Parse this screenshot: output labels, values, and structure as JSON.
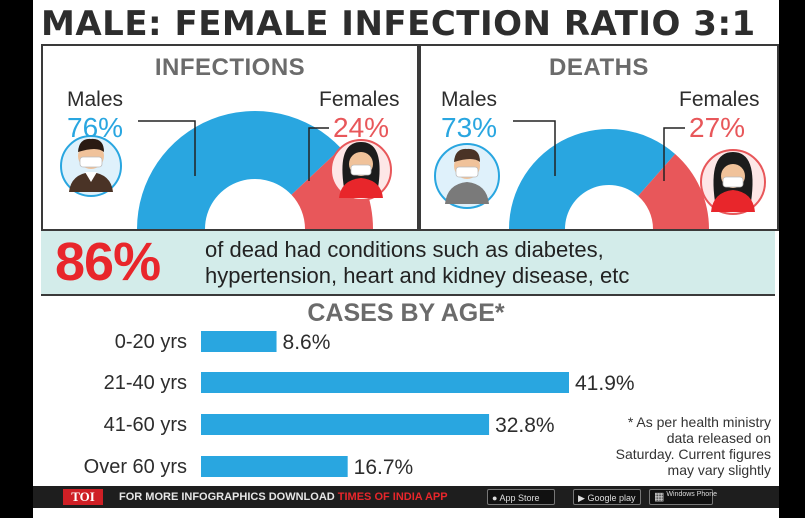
{
  "title": "MALE: FEMALE INFECTION RATIO 3:1",
  "colors": {
    "male": "#29a6e0",
    "female": "#e8575a",
    "band": "#d3ecea",
    "accent_red": "#e8262b"
  },
  "infections": {
    "heading": "INFECTIONS",
    "male_label": "Males",
    "male_pct": "76%",
    "female_label": "Females",
    "female_pct": "24%"
  },
  "deaths": {
    "heading": "DEATHS",
    "male_label": "Males",
    "male_pct": "73%",
    "female_label": "Females",
    "female_pct": "27%"
  },
  "comorbidity": {
    "value": "86%",
    "line1": "of dead had conditions such as diabetes,",
    "line2": "hypertension, heart and kidney disease, etc"
  },
  "age_section": {
    "heading": "CASES BY AGE*"
  },
  "chart_data": [
    {
      "type": "pie",
      "title": "INFECTIONS",
      "categories": [
        "Males",
        "Females"
      ],
      "values": [
        76,
        24
      ],
      "unit": "%"
    },
    {
      "type": "pie",
      "title": "DEATHS",
      "categories": [
        "Males",
        "Females"
      ],
      "values": [
        73,
        27
      ],
      "unit": "%"
    },
    {
      "type": "bar",
      "title": "CASES BY AGE*",
      "categories": [
        "0-20 yrs",
        "21-40 yrs",
        "41-60 yrs",
        "Over 60 yrs"
      ],
      "values": [
        8.6,
        41.9,
        32.8,
        16.7
      ],
      "labels": [
        "8.6%",
        "41.9%",
        "32.8%",
        "16.7%"
      ],
      "unit": "%",
      "xlim": [
        0,
        41.9
      ]
    }
  ],
  "footnote": {
    "line1": "* As per health ministry",
    "line2": "data released on",
    "line3": "Saturday. Current figures",
    "line4": "may vary slightly"
  },
  "footer": {
    "brand": "TOI",
    "text": "FOR MORE INFOGRAPHICS DOWNLOAD",
    "app_name": "TIMES OF INDIA APP",
    "app_store": "App Store",
    "google_play": "Google play",
    "windows_phone": "Windows Phone"
  },
  "icons": {
    "male": "man-with-mask-icon",
    "female": "woman-with-mask-icon",
    "apple": "apple-icon",
    "play": "play-icon",
    "windows": "windows-icon"
  }
}
